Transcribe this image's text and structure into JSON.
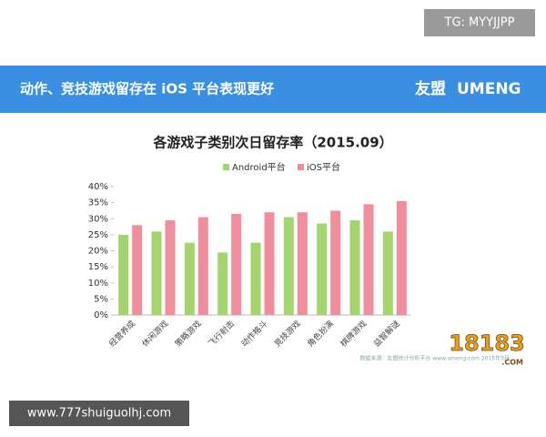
{
  "watermark_top": "TG: MYYJJPP",
  "banner": {
    "headline": "动作、竞技游戏留存在 iOS 平台表现更好",
    "logo_cn": "友盟",
    "logo_en": "UMENG"
  },
  "chart_data": {
    "type": "bar",
    "title": "各游戏子类别次日留存率（2015.09）",
    "categories": [
      "经营养成",
      "休闲游戏",
      "策略游戏",
      "飞行射击",
      "动作格斗",
      "竞技游戏",
      "角色扮演",
      "棋牌游戏",
      "益智解谜"
    ],
    "series": [
      {
        "name": "Android平台",
        "color": "#a3d46e",
        "values": [
          25,
          26,
          22.5,
          19.5,
          22.5,
          30.5,
          28.5,
          29.5,
          26
        ]
      },
      {
        "name": "iOS平台",
        "color": "#f08e9d",
        "values": [
          28,
          29.5,
          30.5,
          31.5,
          32,
          32,
          32.5,
          34.5,
          35.5
        ]
      }
    ],
    "ylim": [
      0,
      40
    ],
    "yticks": [
      {
        "value": 0,
        "label": "0%"
      },
      {
        "value": 5,
        "label": "5%"
      },
      {
        "value": 10,
        "label": "10%"
      },
      {
        "value": 15,
        "label": "15%"
      },
      {
        "value": 20,
        "label": "20%"
      },
      {
        "value": 25,
        "label": "25%"
      },
      {
        "value": 30,
        "label": "30%"
      },
      {
        "value": 35,
        "label": "35%"
      },
      {
        "value": 40,
        "label": "40%"
      }
    ],
    "source": "数据来源：友盟统计分析平台 www.umeng.com 2015年9月"
  },
  "site_logo": {
    "number": "18183",
    "suffix": ".COM"
  },
  "watermark_bottom": "www.777shuiguolhj.com"
}
